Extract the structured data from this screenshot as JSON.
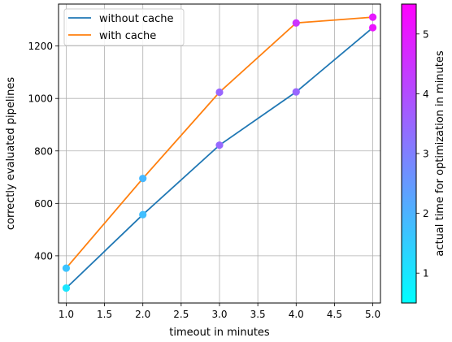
{
  "chart_data": {
    "type": "line",
    "xlabel": "timeout in minutes",
    "ylabel": "correctly evaluated pipelines",
    "xlim": [
      0.9,
      5.1
    ],
    "ylim": [
      220,
      1360
    ],
    "xticks": [
      "1.0",
      "1.5",
      "2.0",
      "2.5",
      "3.0",
      "3.5",
      "4.0",
      "4.5",
      "5.0"
    ],
    "yticks": [
      "400",
      "600",
      "800",
      "1000",
      "1200"
    ],
    "grid": true,
    "legend_position": "top-left",
    "series": [
      {
        "name": "without cache",
        "color": "#1f77b4",
        "x": [
          1,
          2,
          3,
          4,
          5
        ],
        "y": [
          277,
          557,
          822,
          1025,
          1270
        ],
        "marker_time": [
          1.0,
          1.75,
          3.45,
          3.5,
          5.1
        ]
      },
      {
        "name": "with cache",
        "color": "#ff7f0e",
        "x": [
          1,
          2,
          3,
          4,
          5
        ],
        "y": [
          353,
          695,
          1024,
          1288,
          1310
        ],
        "marker_time": [
          1.65,
          1.9,
          3.5,
          4.5,
          5.0
        ]
      }
    ],
    "colorbar": {
      "label": "actual time for optimization in minutes",
      "range": [
        0.5,
        5.5
      ],
      "ticks": [
        "1",
        "2",
        "3",
        "4",
        "5"
      ],
      "colormap": "cool"
    }
  }
}
